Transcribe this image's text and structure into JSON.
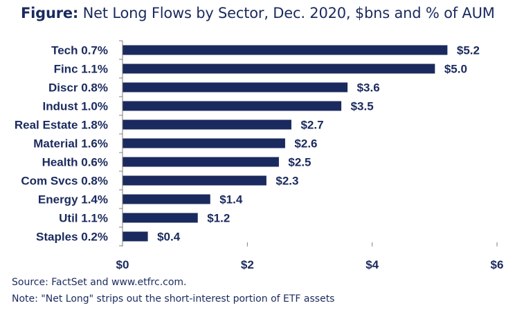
{
  "title": {
    "label": "Figure:",
    "text": "Net Long Flows by Sector, Dec. 2020, $bns and % of AUM"
  },
  "chart_data": {
    "type": "bar",
    "orientation": "horizontal",
    "categories": [
      "Tech 0.7%",
      "Finc 1.1%",
      "Discr 0.8%",
      "Indust 1.0%",
      "Real Estate 1.8%",
      "Material 1.6%",
      "Health 0.6%",
      "Com Svcs 0.8%",
      "Energy 1.4%",
      "Util 1.1%",
      "Staples 0.2%"
    ],
    "values": [
      5.2,
      5.0,
      3.6,
      3.5,
      2.7,
      2.6,
      2.5,
      2.3,
      1.4,
      1.2,
      0.4
    ],
    "value_labels": [
      "$5.2",
      "$5.0",
      "$3.6",
      "$3.5",
      "$2.7",
      "$2.6",
      "$2.5",
      "$2.3",
      "$1.4",
      "$1.2",
      "$0.4"
    ],
    "xlim": [
      0,
      6
    ],
    "x_ticks": [
      0,
      2,
      4,
      6
    ],
    "x_tick_labels": [
      "$0",
      "$2",
      "$4",
      "$6"
    ],
    "bar_color": "#1a2a5e",
    "grid": false
  },
  "notes": {
    "source": "Source: FactSet and www.etfrc.com.",
    "note": "Note: \"Net Long\" strips out the short-interest portion of ETF assets"
  }
}
